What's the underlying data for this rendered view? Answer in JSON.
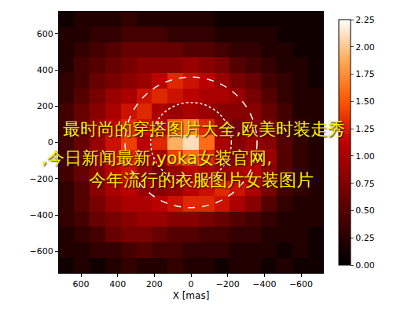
{
  "chart_data": {
    "type": "heatmap",
    "x_label": "X [mas]",
    "x": [
      680,
      595,
      510,
      425,
      340,
      255,
      170,
      85,
      0,
      -85,
      -170,
      -255,
      -340,
      -425,
      -510,
      -595,
      -680
    ],
    "y": [
      -680,
      -595,
      -510,
      -425,
      -340,
      -255,
      -170,
      -85,
      0,
      85,
      170,
      255,
      340,
      425,
      510,
      595,
      680
    ],
    "cells": [
      [
        0.1,
        0.2,
        0.1,
        0.2,
        0.3,
        0.2,
        0.2,
        0.3,
        0.2,
        0.2,
        0.1,
        0.2,
        0.2,
        0.1,
        0.2,
        0.1,
        0.1
      ],
      [
        0.2,
        0.2,
        0.3,
        0.3,
        0.4,
        0.5,
        0.4,
        0.4,
        0.3,
        0.3,
        0.3,
        0.2,
        0.2,
        0.2,
        0.1,
        0.2,
        0.1
      ],
      [
        0.2,
        0.3,
        0.4,
        0.6,
        0.7,
        0.7,
        0.6,
        0.5,
        0.5,
        0.4,
        0.4,
        0.3,
        0.3,
        0.2,
        0.2,
        0.2,
        0.1
      ],
      [
        0.3,
        0.4,
        0.6,
        0.7,
        0.8,
        0.9,
        0.9,
        0.8,
        0.8,
        0.7,
        0.6,
        0.5,
        0.4,
        0.3,
        0.2,
        0.2,
        0.2
      ],
      [
        0.3,
        0.5,
        0.7,
        0.9,
        1.0,
        1.0,
        1.1,
        1.2,
        1.3,
        1.3,
        1.2,
        1.0,
        0.8,
        0.5,
        0.3,
        0.2,
        0.2
      ],
      [
        0.3,
        0.5,
        0.8,
        1.0,
        1.1,
        0.9,
        0.8,
        0.9,
        1.1,
        1.2,
        1.3,
        1.2,
        1.0,
        0.7,
        0.4,
        0.3,
        0.2
      ],
      [
        0.4,
        0.6,
        0.8,
        1.1,
        1.2,
        0.9,
        0.7,
        0.9,
        1.1,
        1.0,
        0.9,
        1.0,
        1.1,
        0.8,
        0.5,
        0.3,
        0.2
      ],
      [
        0.4,
        0.6,
        0.9,
        1.2,
        1.3,
        1.0,
        1.0,
        1.4,
        1.6,
        1.3,
        0.9,
        0.8,
        1.0,
        0.9,
        0.5,
        0.3,
        0.2
      ],
      [
        0.4,
        0.6,
        0.9,
        1.2,
        1.4,
        1.1,
        1.3,
        1.9,
        2.1,
        1.6,
        1.0,
        0.8,
        0.9,
        0.8,
        0.5,
        0.3,
        0.2
      ],
      [
        0.4,
        0.6,
        0.9,
        1.1,
        1.3,
        1.2,
        1.1,
        1.5,
        1.7,
        1.3,
        0.9,
        0.7,
        0.8,
        0.7,
        0.4,
        0.3,
        0.2
      ],
      [
        0.4,
        0.6,
        0.8,
        1.0,
        1.2,
        1.3,
        1.0,
        0.9,
        1.0,
        0.9,
        0.8,
        0.8,
        0.8,
        0.6,
        0.4,
        0.2,
        0.2
      ],
      [
        0.3,
        0.5,
        0.7,
        0.9,
        1.0,
        1.2,
        1.3,
        1.2,
        1.1,
        1.0,
        1.0,
        0.9,
        0.7,
        0.5,
        0.3,
        0.2,
        0.2
      ],
      [
        0.3,
        0.4,
        0.6,
        0.7,
        0.8,
        0.9,
        1.1,
        1.3,
        1.2,
        1.1,
        0.9,
        0.7,
        0.6,
        0.4,
        0.3,
        0.2,
        0.1
      ],
      [
        0.2,
        0.4,
        0.5,
        0.6,
        0.7,
        0.8,
        0.8,
        0.8,
        0.9,
        0.8,
        0.7,
        0.5,
        0.4,
        0.3,
        0.2,
        0.2,
        0.1
      ],
      [
        0.2,
        0.3,
        0.4,
        0.5,
        0.6,
        0.6,
        0.6,
        0.6,
        0.5,
        0.5,
        0.4,
        0.3,
        0.3,
        0.2,
        0.2,
        0.1,
        0.1
      ],
      [
        0.2,
        0.2,
        0.3,
        0.3,
        0.4,
        0.4,
        0.4,
        0.3,
        0.3,
        0.3,
        0.2,
        0.2,
        0.2,
        0.2,
        0.1,
        0.1,
        0.1
      ],
      [
        0.1,
        0.2,
        0.2,
        0.2,
        0.3,
        0.2,
        0.2,
        0.2,
        0.2,
        0.2,
        0.1,
        0.1,
        0.1,
        0.1,
        0.1,
        0.1,
        0.1
      ]
    ],
    "xlim": [
      720,
      -720
    ],
    "ylim": [
      -720,
      720
    ],
    "xticks": [
      600,
      400,
      200,
      0,
      {
        "value": -200,
        "label": "−200"
      },
      {
        "value": -400,
        "label": "−400"
      },
      {
        "value": -600,
        "label": "−600"
      }
    ],
    "yticks": [
      {
        "value": -600,
        "label": "−600"
      },
      {
        "value": -400,
        "label": "−400"
      },
      {
        "value": -200,
        "label": "−200"
      },
      0,
      200,
      400,
      600
    ],
    "colorbar": {
      "range": [
        0,
        2.25
      ],
      "ticks": [
        {
          "value": 0,
          "label": "0.00"
        },
        {
          "value": 0.25,
          "label": "0.25"
        },
        {
          "value": 0.5,
          "label": "0.50"
        },
        {
          "value": 0.75,
          "label": "0.75"
        },
        {
          "value": 1,
          "label": "1.00"
        },
        {
          "value": 1.25,
          "label": "1.25"
        },
        {
          "value": 1.5,
          "label": "1.50"
        },
        {
          "value": 1.75,
          "label": "1.75"
        },
        {
          "value": 2,
          "label": "2.00"
        },
        {
          "value": 2.25,
          "label": "2.25"
        }
      ]
    },
    "circles": [
      {
        "radius": 360,
        "line_style": "dashed"
      },
      {
        "radius": 220,
        "line_style": "dotted"
      }
    ],
    "annotations": [
      {
        "text": "最时尚的穿搭图片大全,欧美时装走秀"
      },
      {
        "text": ",今日新闻最新,yoka女装官网,"
      },
      {
        "text": "今年流行的衣服图片女装图片"
      }
    ],
    "grid": false
  }
}
